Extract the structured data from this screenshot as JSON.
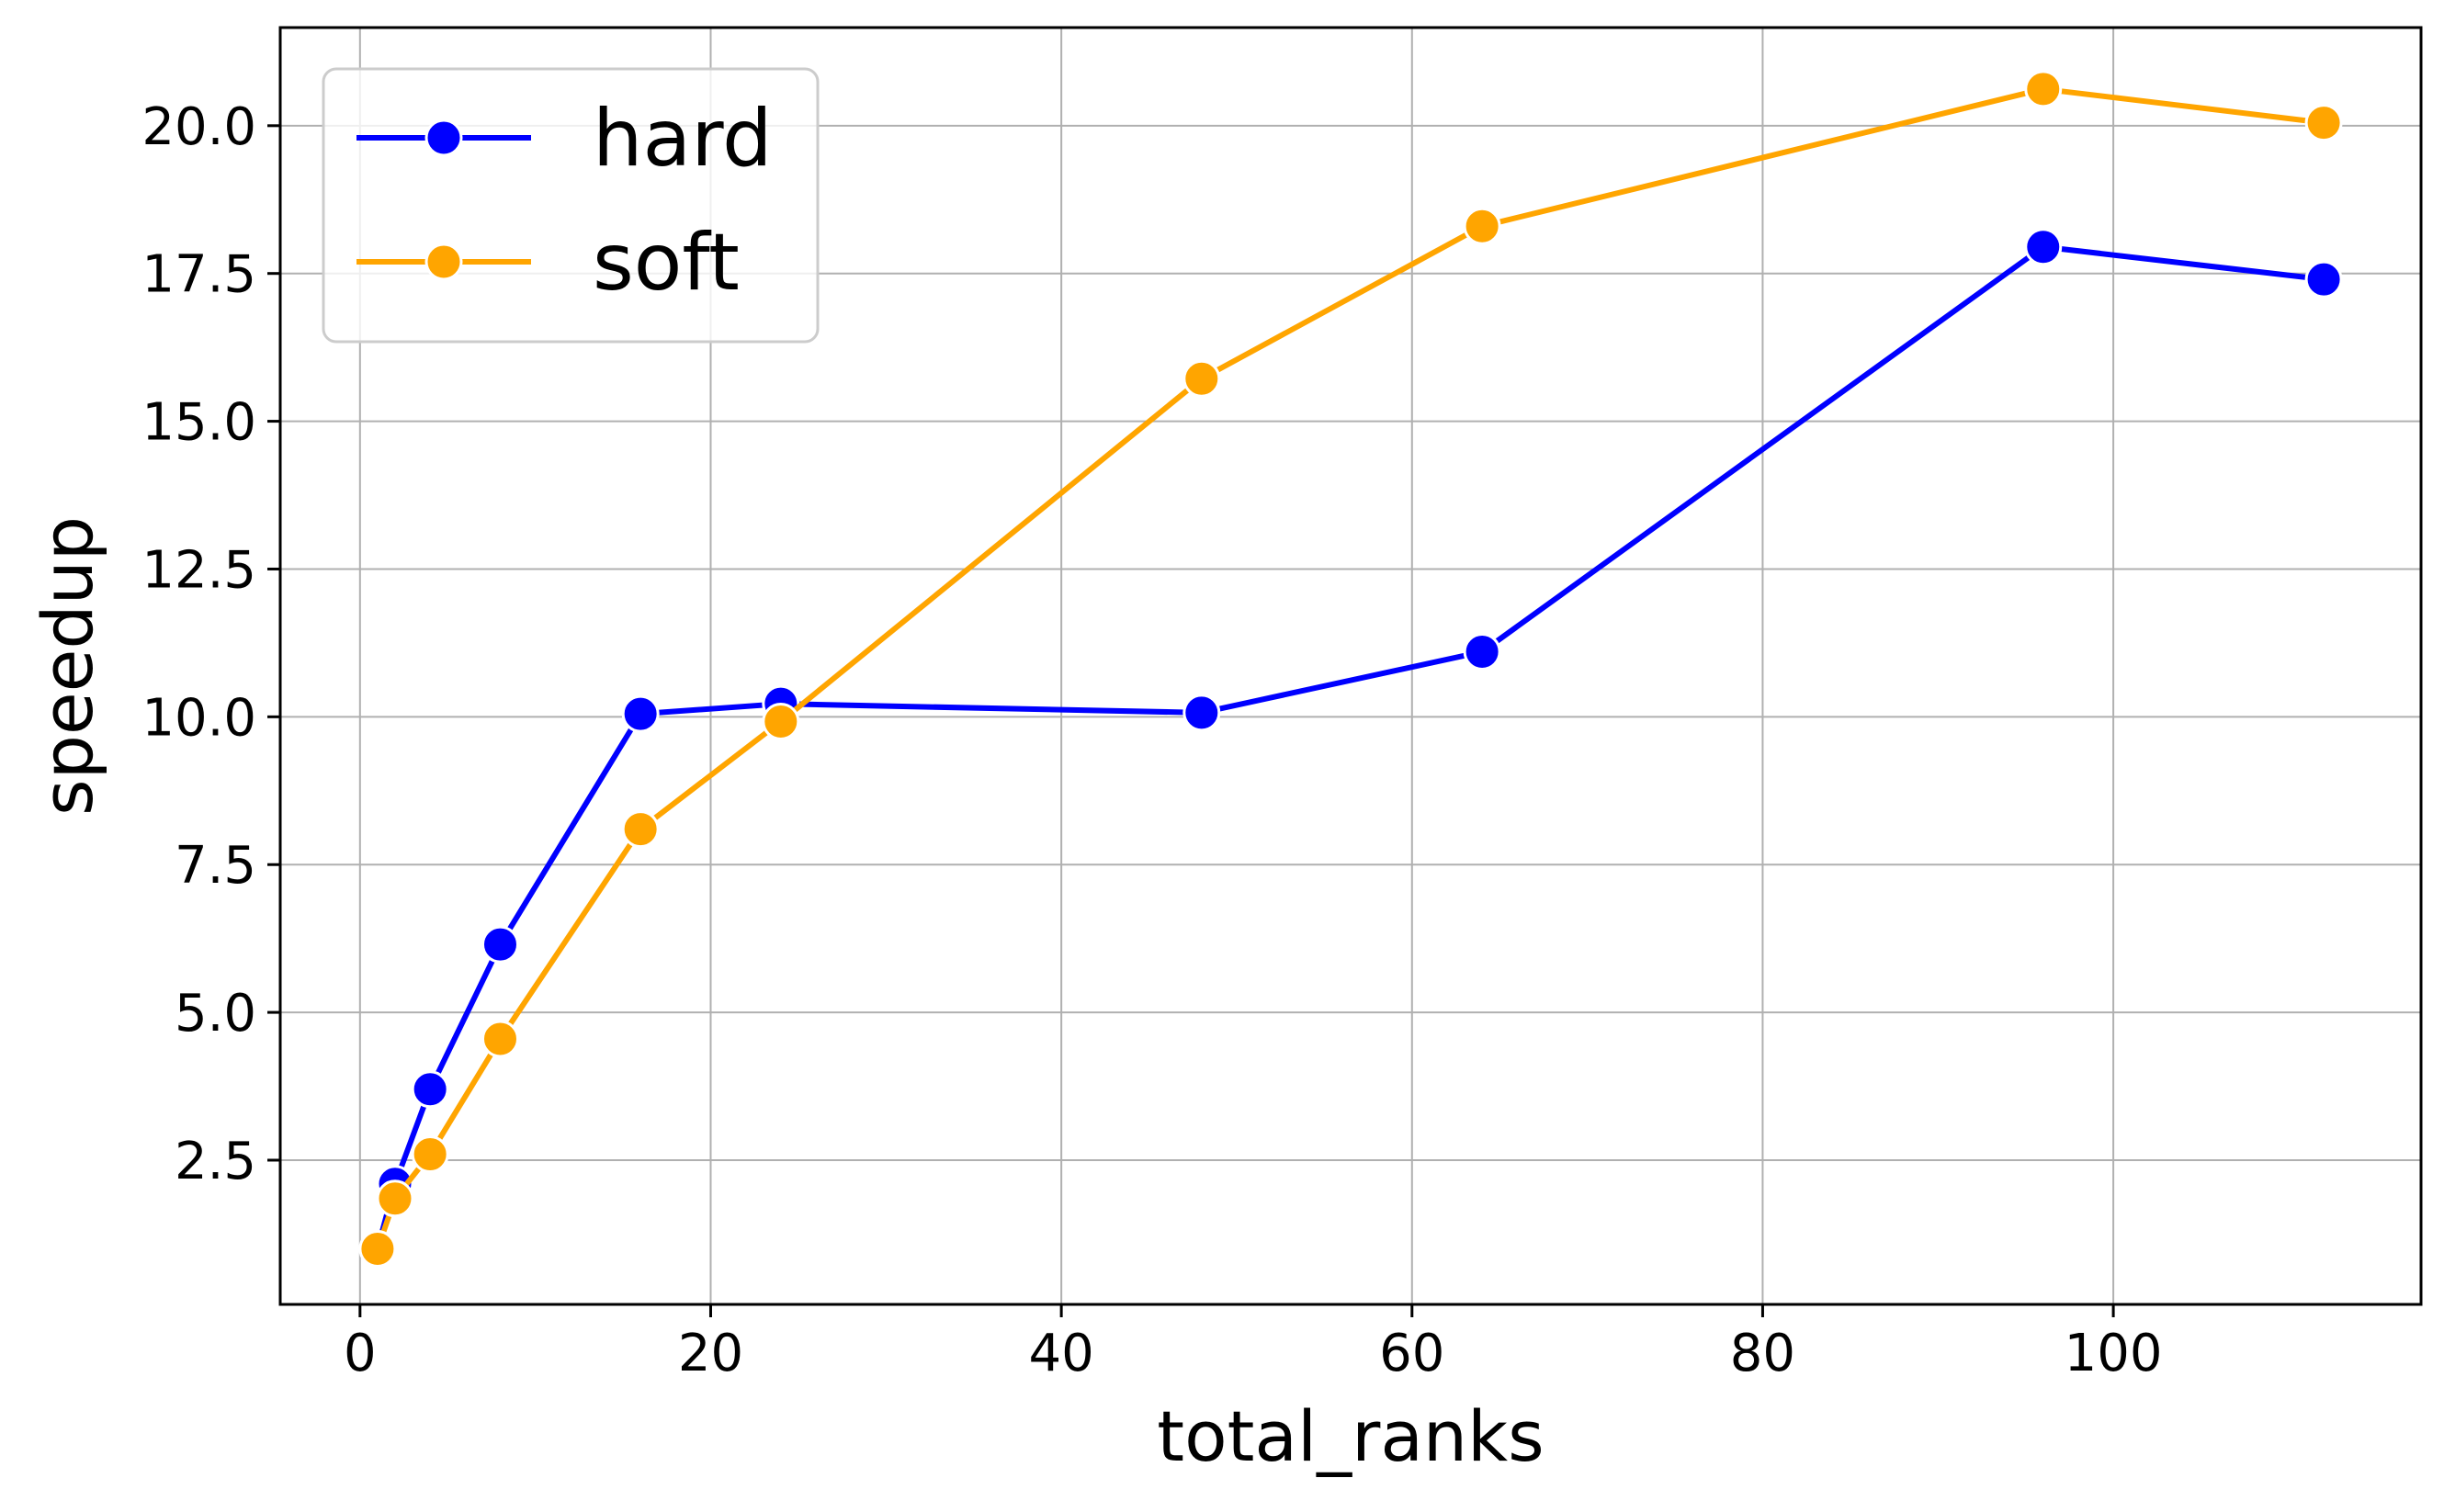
{
  "chart_data": {
    "type": "line",
    "title": "",
    "xlabel": "total_ranks",
    "ylabel": "speedup",
    "xlim": [
      -4.55,
      117.55
    ],
    "ylim": [
      0.06,
      21.66
    ],
    "grid": true,
    "legend_position": "top-left",
    "x_ticks": [
      0,
      20,
      40,
      60,
      80,
      100
    ],
    "x_tick_labels": [
      "0",
      "20",
      "40",
      "60",
      "80",
      "100"
    ],
    "y_ticks": [
      2.5,
      5.0,
      7.5,
      10.0,
      12.5,
      15.0,
      17.5,
      20.0
    ],
    "y_tick_labels": [
      "2.5",
      "5.0",
      "7.5",
      "10.0",
      "12.5",
      "15.0",
      "17.5",
      "20.0"
    ],
    "series": [
      {
        "name": "hard",
        "color": "#0000ff",
        "marker": "circle",
        "x": [
          1,
          2,
          4,
          8,
          16,
          24,
          48,
          64,
          96,
          112
        ],
        "y": [
          1.0,
          2.1,
          3.7,
          6.15,
          10.05,
          10.22,
          10.07,
          11.1,
          17.95,
          17.4
        ]
      },
      {
        "name": "soft",
        "color": "#ffa500",
        "marker": "circle",
        "x": [
          1,
          2,
          4,
          8,
          16,
          24,
          48,
          64,
          96,
          112
        ],
        "y": [
          1.0,
          1.85,
          2.6,
          4.55,
          8.1,
          9.92,
          15.72,
          18.3,
          20.62,
          20.05
        ]
      }
    ]
  }
}
